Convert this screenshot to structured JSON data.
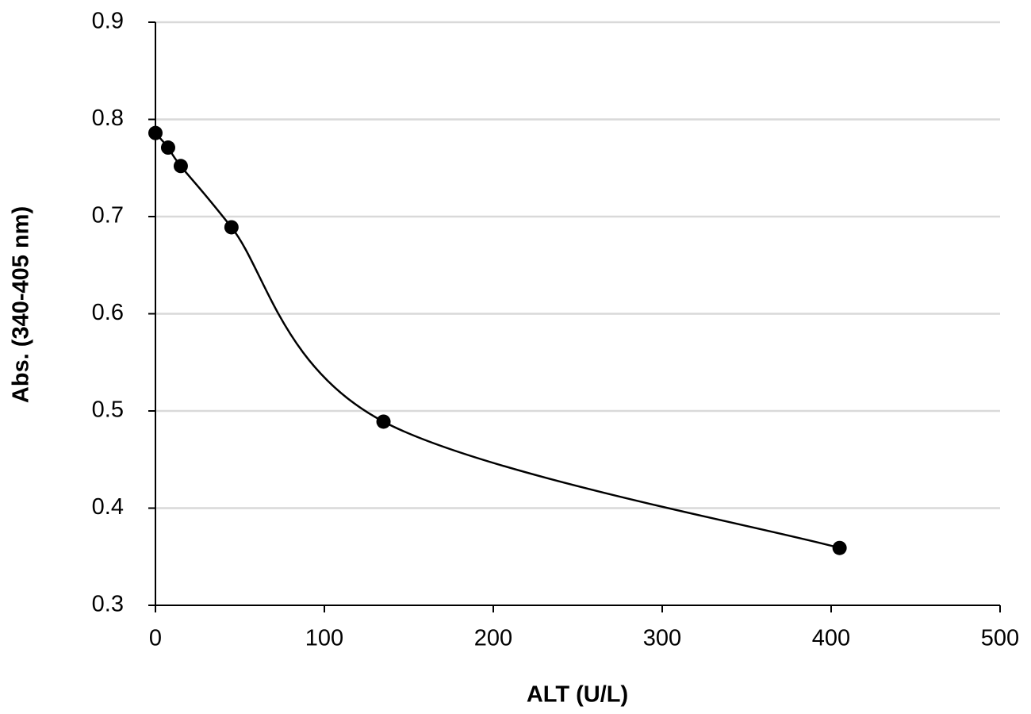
{
  "chart_data": {
    "type": "scatter",
    "x_label": "ALT (U/L)",
    "y_label": "Abs. (340-405 nm)",
    "x": [
      0,
      7.5,
      15,
      45,
      135,
      405
    ],
    "values": [
      0.786,
      0.771,
      0.752,
      0.689,
      0.489,
      0.359
    ],
    "color": "#000000",
    "smooth": true,
    "grid": true,
    "xlim": [
      0,
      500
    ],
    "xticks": [
      0,
      100,
      200,
      300,
      400,
      500
    ],
    "ylim": [
      0.3,
      0.9
    ],
    "yticks": [
      0.3,
      0.4,
      0.5,
      0.6,
      0.7,
      0.8,
      0.9
    ]
  }
}
